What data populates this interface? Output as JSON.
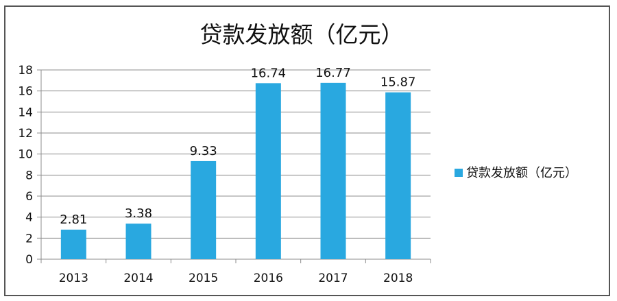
{
  "chart_data": {
    "type": "bar",
    "title": "贷款发放额（亿元）",
    "categories": [
      "2013",
      "2014",
      "2015",
      "2016",
      "2017",
      "2018"
    ],
    "series": [
      {
        "name": "贷款发放额（亿元）",
        "values": [
          2.81,
          3.38,
          9.33,
          16.74,
          16.77,
          15.87
        ],
        "color": "#29A8E0"
      }
    ],
    "value_labels": [
      "2.81",
      "3.38",
      "9.33",
      "16.74",
      "16.77",
      "15.87"
    ],
    "ylim": [
      0,
      18
    ],
    "yticks": [
      "0",
      "2",
      "4",
      "6",
      "8",
      "10",
      "12",
      "14",
      "16",
      "18"
    ],
    "grid": true,
    "legend_position": "right"
  }
}
